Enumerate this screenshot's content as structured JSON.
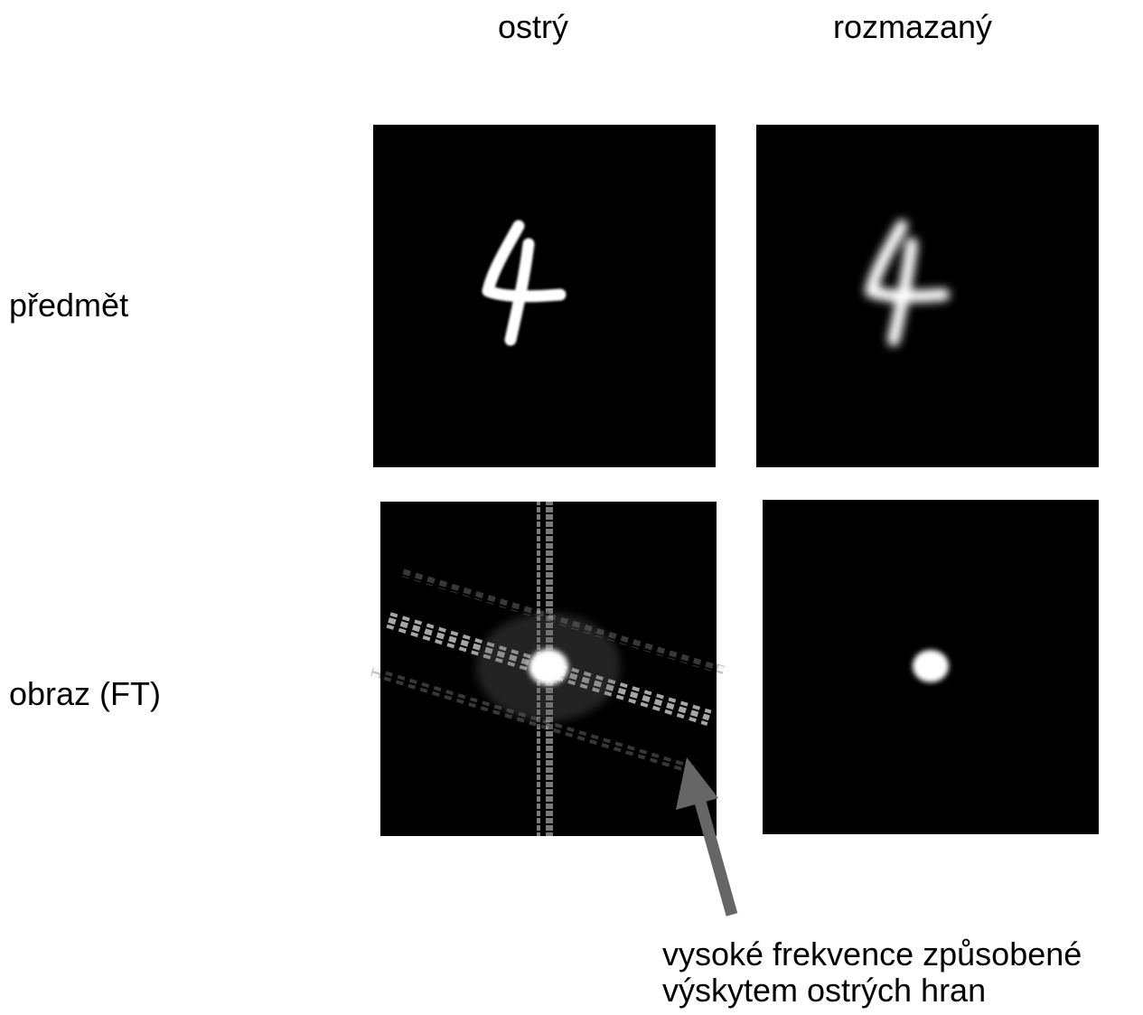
{
  "columns": [
    "ostrý",
    "rozmazaný"
  ],
  "rows": [
    "předmět",
    "obraz (FT)"
  ],
  "annotation": {
    "lines": [
      "vysoké frekvence způsobené",
      "výskytem ostrých hran"
    ]
  }
}
